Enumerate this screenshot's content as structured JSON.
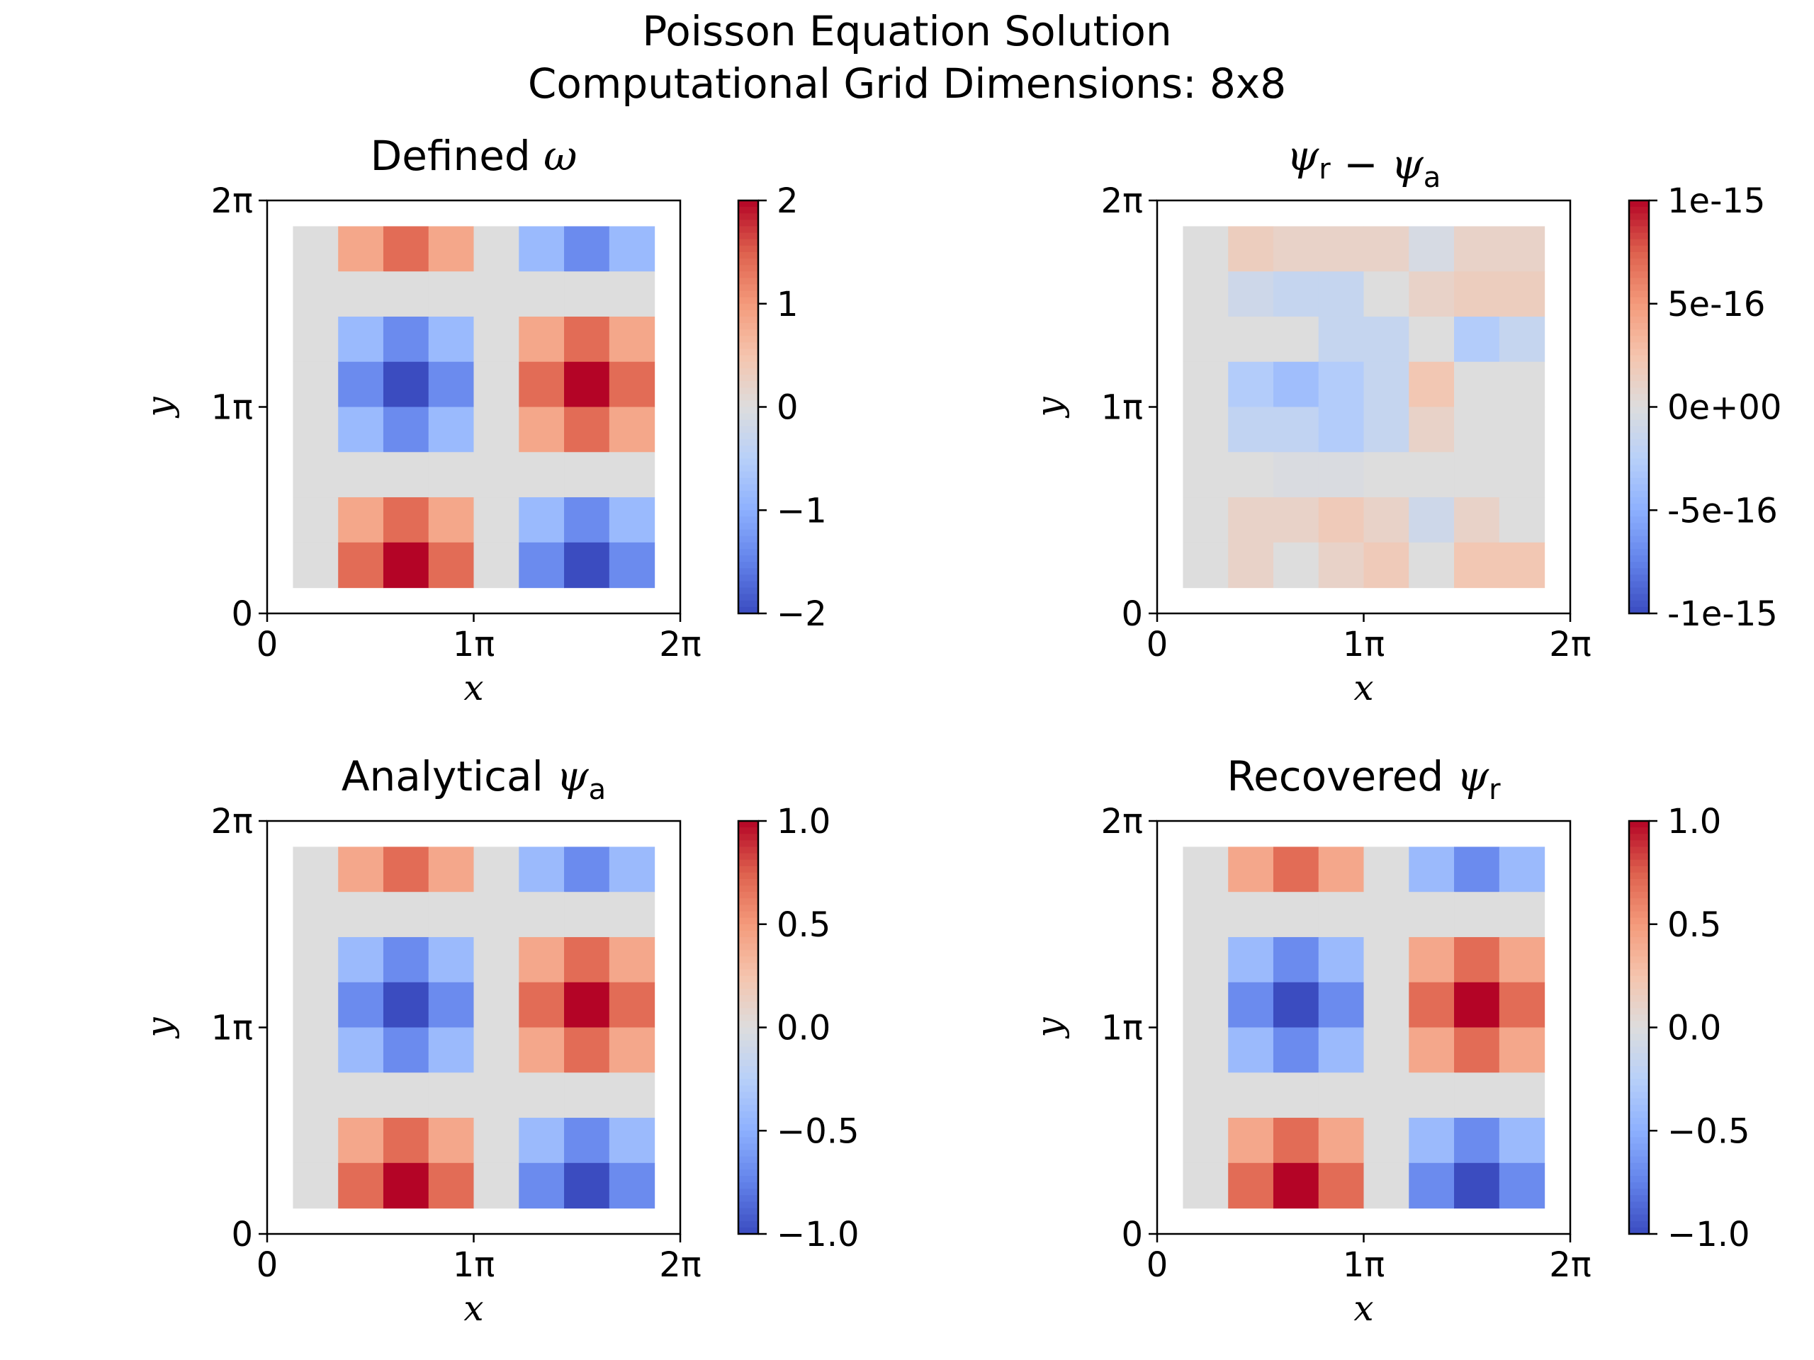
{
  "figure": {
    "title_line1": "Poisson Equation Solution",
    "title_line2": "Computational Grid Dimensions: 8x8"
  },
  "chart_data": [
    {
      "type": "heatmap",
      "title": "Defined ω",
      "xlabel": "x",
      "ylabel": "y",
      "x_ticks": [
        "0",
        "1π",
        "2π"
      ],
      "y_ticks": [
        "0",
        "1π",
        "2π"
      ],
      "cmap": "coolwarm",
      "vmin": -2,
      "vmax": 2,
      "colorbar_ticks": [
        2,
        1,
        0,
        -1,
        -2
      ],
      "colorbar_tick_labels": [
        "2",
        "1",
        "0",
        "−1",
        "−2"
      ],
      "values_rows_top_to_bottom": [
        [
          0,
          0.85,
          1.4,
          0.85,
          0,
          -0.85,
          -1.4,
          -0.85
        ],
        [
          0,
          0,
          0,
          0,
          0,
          0,
          0,
          0
        ],
        [
          0,
          -0.85,
          -1.4,
          -0.85,
          0,
          0.85,
          1.4,
          0.85
        ],
        [
          0,
          -1.4,
          -2.0,
          -1.4,
          0,
          1.4,
          2.0,
          1.4
        ],
        [
          0,
          -0.85,
          -1.4,
          -0.85,
          0,
          0.85,
          1.4,
          0.85
        ],
        [
          0,
          0,
          0,
          0,
          0,
          0,
          0,
          0
        ],
        [
          0,
          0.85,
          1.4,
          0.85,
          0,
          -0.85,
          -1.4,
          -0.85
        ],
        [
          0,
          1.4,
          2.0,
          1.4,
          0,
          -1.4,
          -2.0,
          -1.4
        ]
      ]
    },
    {
      "type": "heatmap",
      "title": "ψr − ψa",
      "xlabel": "x",
      "ylabel": "y",
      "x_ticks": [
        "0",
        "1π",
        "2π"
      ],
      "y_ticks": [
        "0",
        "1π",
        "2π"
      ],
      "cmap": "coolwarm",
      "vmin": -1e-15,
      "vmax": 1e-15,
      "colorbar_ticks": [
        1e-15,
        5e-16,
        0,
        -5e-16,
        -1e-15
      ],
      "colorbar_tick_labels": [
        "1e-15",
        "5e-16",
        "0e+00",
        "-5e-16",
        "-1e-15"
      ],
      "values_rows_top_to_bottom": [
        [
          0,
          1.6e-16,
          1.1e-16,
          1.1e-16,
          1.1e-16,
          -5e-17,
          1.1e-16,
          1.1e-16
        ],
        [
          0,
          -1.1e-16,
          -1.6e-16,
          -1.6e-16,
          0,
          1.1e-16,
          1.6e-16,
          1.6e-16
        ],
        [
          0,
          0,
          0,
          -1.6e-16,
          -1.6e-16,
          0,
          -2.8e-16,
          -1.6e-16
        ],
        [
          0,
          -2.8e-16,
          -3.9e-16,
          -2.8e-16,
          -1.6e-16,
          2.2e-16,
          0,
          0
        ],
        [
          0,
          -1.9e-16,
          -1.9e-16,
          -2.8e-16,
          -1.6e-16,
          1.1e-16,
          0,
          0
        ],
        [
          0,
          0,
          -3e-17,
          -3e-17,
          0,
          0,
          0,
          0
        ],
        [
          0,
          1.1e-16,
          1.1e-16,
          1.9e-16,
          1.1e-16,
          -1.1e-16,
          1.1e-16,
          0
        ],
        [
          0,
          1.1e-16,
          0,
          1.1e-16,
          1.9e-16,
          0,
          2.2e-16,
          2.2e-16
        ]
      ]
    },
    {
      "type": "heatmap",
      "title": "Analytical ψa",
      "xlabel": "x",
      "ylabel": "y",
      "x_ticks": [
        "0",
        "1π",
        "2π"
      ],
      "y_ticks": [
        "0",
        "1π",
        "2π"
      ],
      "cmap": "coolwarm",
      "vmin": -1.0,
      "vmax": 1.0,
      "colorbar_ticks": [
        1.0,
        0.5,
        0.0,
        -0.5,
        -1.0
      ],
      "colorbar_tick_labels": [
        "1.0",
        "0.5",
        "0.0",
        "−0.5",
        "−1.0"
      ],
      "values_rows_top_to_bottom": [
        [
          0,
          0.42,
          0.7,
          0.42,
          0,
          -0.42,
          -0.7,
          -0.42
        ],
        [
          0,
          0,
          0,
          0,
          0,
          0,
          0,
          0
        ],
        [
          0,
          -0.42,
          -0.7,
          -0.42,
          0,
          0.42,
          0.7,
          0.42
        ],
        [
          0,
          -0.7,
          -1.0,
          -0.7,
          0,
          0.7,
          1.0,
          0.7
        ],
        [
          0,
          -0.42,
          -0.7,
          -0.42,
          0,
          0.42,
          0.7,
          0.42
        ],
        [
          0,
          0,
          0,
          0,
          0,
          0,
          0,
          0
        ],
        [
          0,
          0.42,
          0.7,
          0.42,
          0,
          -0.42,
          -0.7,
          -0.42
        ],
        [
          0,
          0.7,
          1.0,
          0.7,
          0,
          -0.7,
          -1.0,
          -0.7
        ]
      ]
    },
    {
      "type": "heatmap",
      "title": "Recovered ψr",
      "xlabel": "x",
      "ylabel": "y",
      "x_ticks": [
        "0",
        "1π",
        "2π"
      ],
      "y_ticks": [
        "0",
        "1π",
        "2π"
      ],
      "cmap": "coolwarm",
      "vmin": -1.0,
      "vmax": 1.0,
      "colorbar_ticks": [
        1.0,
        0.5,
        0.0,
        -0.5,
        -1.0
      ],
      "colorbar_tick_labels": [
        "1.0",
        "0.5",
        "0.0",
        "−0.5",
        "−1.0"
      ],
      "values_rows_top_to_bottom": [
        [
          0,
          0.42,
          0.7,
          0.42,
          0,
          -0.42,
          -0.7,
          -0.42
        ],
        [
          0,
          0,
          0,
          0,
          0,
          0,
          0,
          0
        ],
        [
          0,
          -0.42,
          -0.7,
          -0.42,
          0,
          0.42,
          0.7,
          0.42
        ],
        [
          0,
          -0.7,
          -1.0,
          -0.7,
          0,
          0.7,
          1.0,
          0.7
        ],
        [
          0,
          -0.42,
          -0.7,
          -0.42,
          0,
          0.42,
          0.7,
          0.42
        ],
        [
          0,
          0,
          0,
          0,
          0,
          0,
          0,
          0
        ],
        [
          0,
          0.42,
          0.7,
          0.42,
          0,
          -0.42,
          -0.7,
          -0.42
        ],
        [
          0,
          0.7,
          1.0,
          0.7,
          0,
          -0.7,
          -1.0,
          -0.7
        ]
      ]
    }
  ]
}
